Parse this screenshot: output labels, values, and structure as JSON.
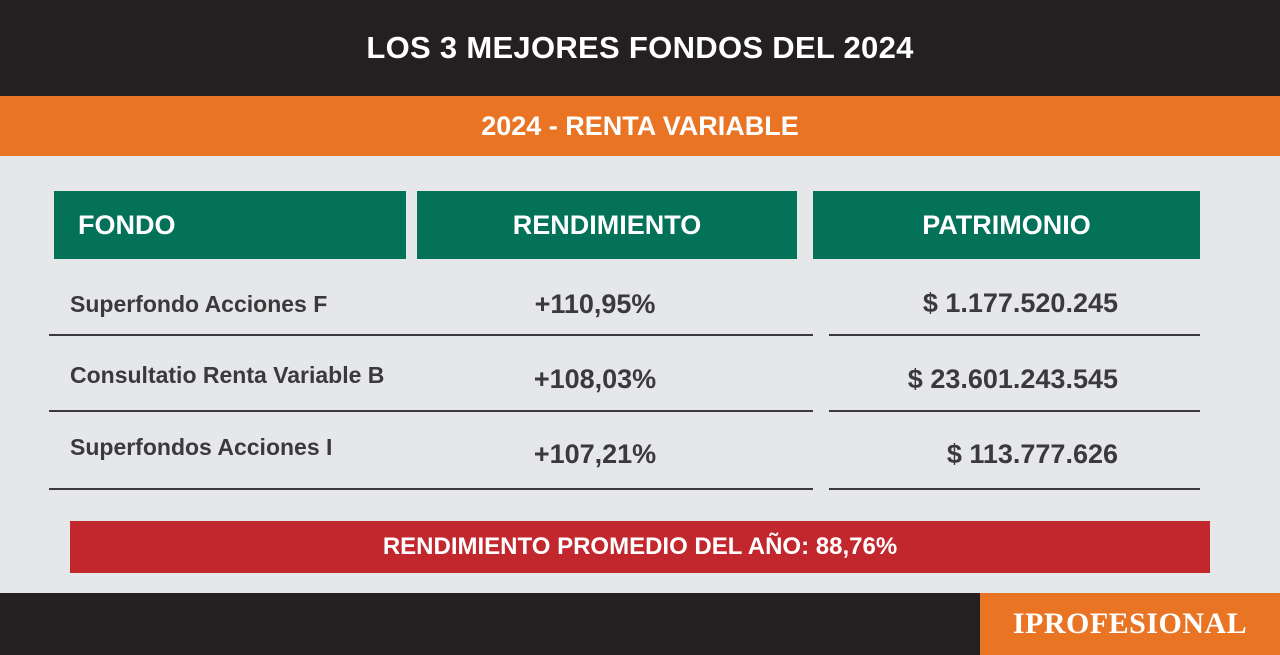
{
  "title": "LOS 3 MEJORES FONDOS DEL 2024",
  "subtitle": "2024 - RENTA VARIABLE",
  "table": {
    "headers": [
      "FONDO",
      "RENDIMIENTO",
      "PATRIMONIO"
    ],
    "rows": [
      {
        "fondo": "Superfondo Acciones F",
        "rendimiento": "+110,95%",
        "patrimonio": "$ 1.177.520.245"
      },
      {
        "fondo": "Consultatio Renta Variable B",
        "rendimiento": "+108,03%",
        "patrimonio": "$ 23.601.243.545"
      },
      {
        "fondo": "Superfondos Acciones I",
        "rendimiento": "+107,21%",
        "patrimonio": "$ 113.777.626"
      }
    ]
  },
  "average": "RENDIMIENTO PROMEDIO DEL AÑO: 88,76%",
  "logo": "IPROFESIONAL",
  "colors": {
    "dark": "#242021",
    "orange": "#e97424",
    "green": "#047258",
    "red": "#c1272d",
    "background": "#e6e7e8",
    "text": "#3a3a3c"
  }
}
